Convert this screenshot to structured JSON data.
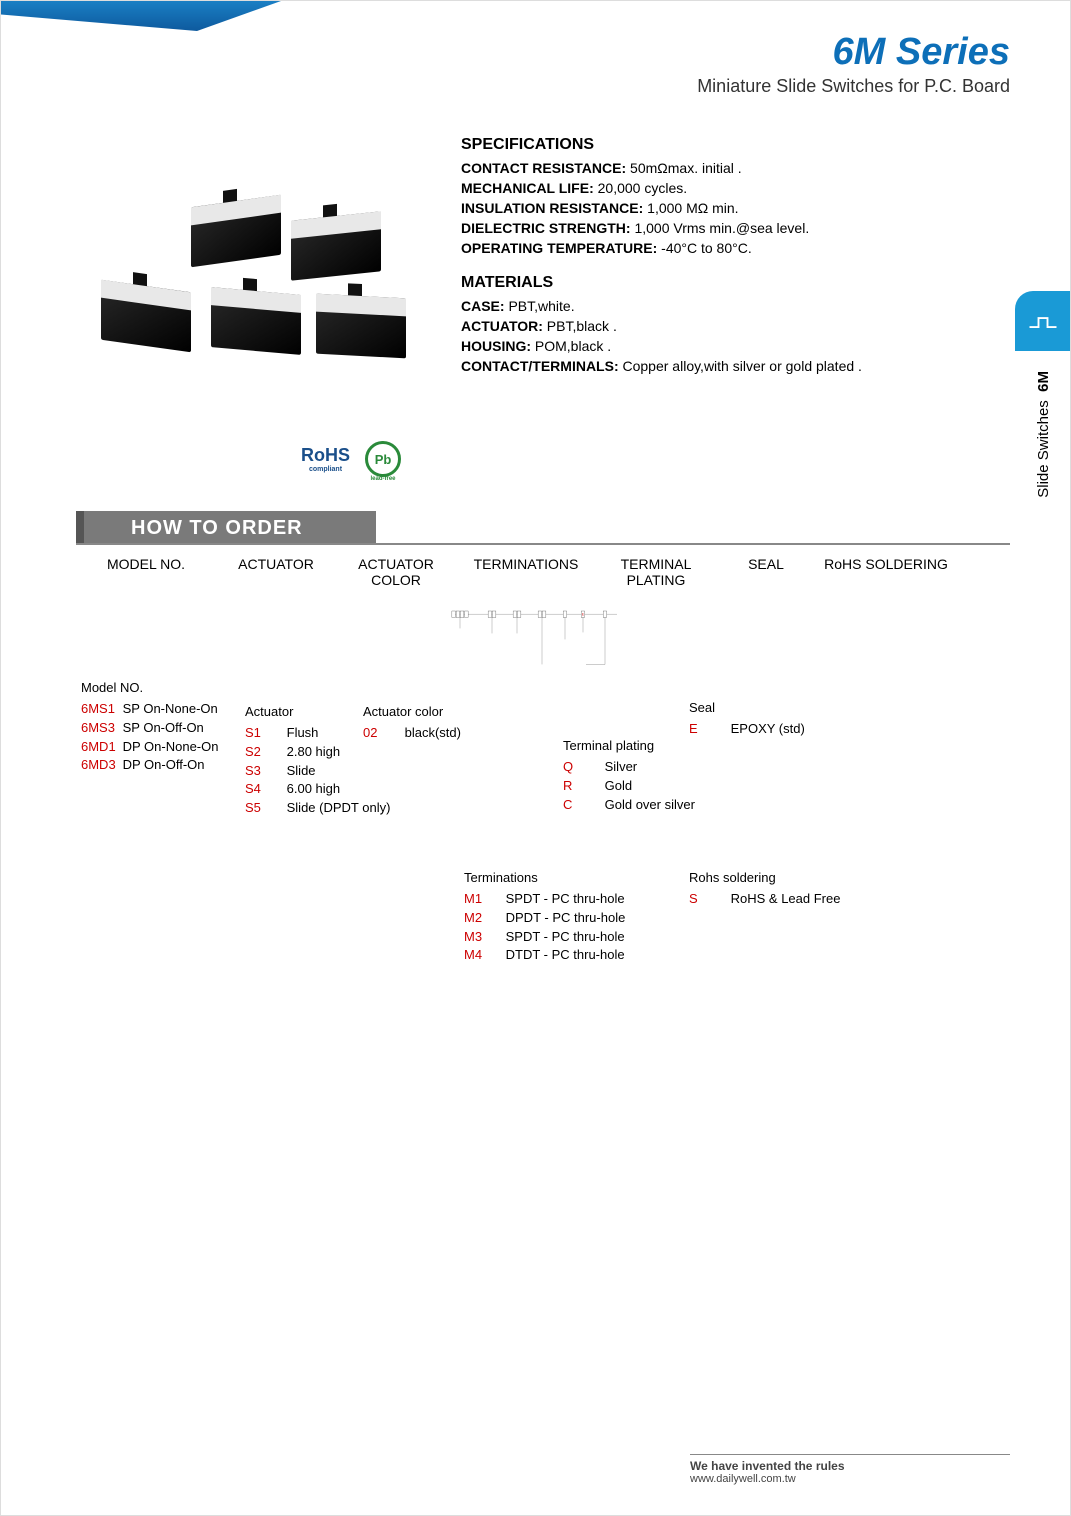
{
  "header": {
    "title": "6M Series",
    "subtitle": "Miniature Slide Switches for P.C. Board"
  },
  "colors": {
    "accent_blue": "#0d6fb8",
    "tab_gray": "#7a7a7a",
    "code_red": "#c00",
    "side_blue": "#1a9ad6"
  },
  "specifications": {
    "heading": "SPECIFICATIONS",
    "items": [
      {
        "label": "CONTACT RESISTANCE:",
        "value": "50mΩmax. initial ."
      },
      {
        "label": "MECHANICAL  LIFE:",
        "value": "20,000 cycles."
      },
      {
        "label": "INSULATION RESISTANCE:",
        "value": "1,000 MΩ min."
      },
      {
        "label": "DIELECTRIC STRENGTH:",
        "value": "1,000 Vrms min.@sea level."
      },
      {
        "label": "OPERATING TEMPERATURE:",
        "value": "-40°C to 80°C."
      }
    ]
  },
  "materials": {
    "heading": "MATERIALS",
    "items": [
      {
        "label": "CASE:",
        "value": "PBT,white."
      },
      {
        "label": "ACTUATOR:",
        "value": "PBT,black ."
      },
      {
        "label": "HOUSING:",
        "value": "POM,black ."
      },
      {
        "label": "CONTACT/TERMINALS:",
        "value": "Copper alloy,with silver or gold plated ."
      }
    ]
  },
  "logos": {
    "rohs": "RoHS",
    "pb": "Pb"
  },
  "howToOrder": {
    "tabTitle": "HOW TO ORDER",
    "columns": [
      "MODEL NO.",
      "ACTUATOR",
      "ACTUATOR COLOR",
      "TERMINATIONS",
      "TERMINAL PLATING",
      "SEAL",
      "RoHS SOLDERING"
    ],
    "boxGroups": [
      4,
      2,
      2,
      2,
      1,
      1,
      1
    ],
    "sealBoxLetter": "E",
    "options": {
      "model": {
        "title": "Model NO.",
        "items": [
          {
            "code": "6MS1",
            "desc": "SP On-None-On"
          },
          {
            "code": "6MS3",
            "desc": "SP On-Off-On"
          },
          {
            "code": "6MD1",
            "desc": "DP On-None-On"
          },
          {
            "code": "6MD3",
            "desc": "DP On-Off-On"
          }
        ]
      },
      "actuator": {
        "title": "Actuator",
        "items": [
          {
            "code": "S1",
            "desc": "Flush"
          },
          {
            "code": "S2",
            "desc": "2.80 high"
          },
          {
            "code": "S3",
            "desc": "Slide"
          },
          {
            "code": "S4",
            "desc": "6.00 high"
          },
          {
            "code": "S5",
            "desc": "Slide  (DPDT only)"
          }
        ]
      },
      "actuatorColor": {
        "title": "Actuator color",
        "items": [
          {
            "code": "02",
            "desc": "black(std)"
          }
        ]
      },
      "terminations": {
        "title": "Terminations",
        "items": [
          {
            "code": "M1",
            "desc": "SPDT - PC thru-hole"
          },
          {
            "code": "M2",
            "desc": "DPDT - PC thru-hole"
          },
          {
            "code": "M3",
            "desc": "SPDT - PC thru-hole"
          },
          {
            "code": "M4",
            "desc": "DTDT - PC thru-hole"
          }
        ]
      },
      "plating": {
        "title": "Terminal plating",
        "items": [
          {
            "code": "Q",
            "desc": "Silver"
          },
          {
            "code": "R",
            "desc": "Gold"
          },
          {
            "code": "C",
            "desc": "Gold over silver"
          }
        ]
      },
      "seal": {
        "title": "Seal",
        "items": [
          {
            "code": "E",
            "desc": "EPOXY (std)"
          }
        ]
      },
      "rohs": {
        "title": "Rohs soldering",
        "items": [
          {
            "code": "S",
            "desc": "RoHS & Lead Free"
          }
        ]
      }
    }
  },
  "sideTab": {
    "bold": "6M",
    "text": "Slide  Switches"
  },
  "footer": {
    "line1": "We have invented the rules",
    "line2": "www.dailywell.com.tw"
  }
}
